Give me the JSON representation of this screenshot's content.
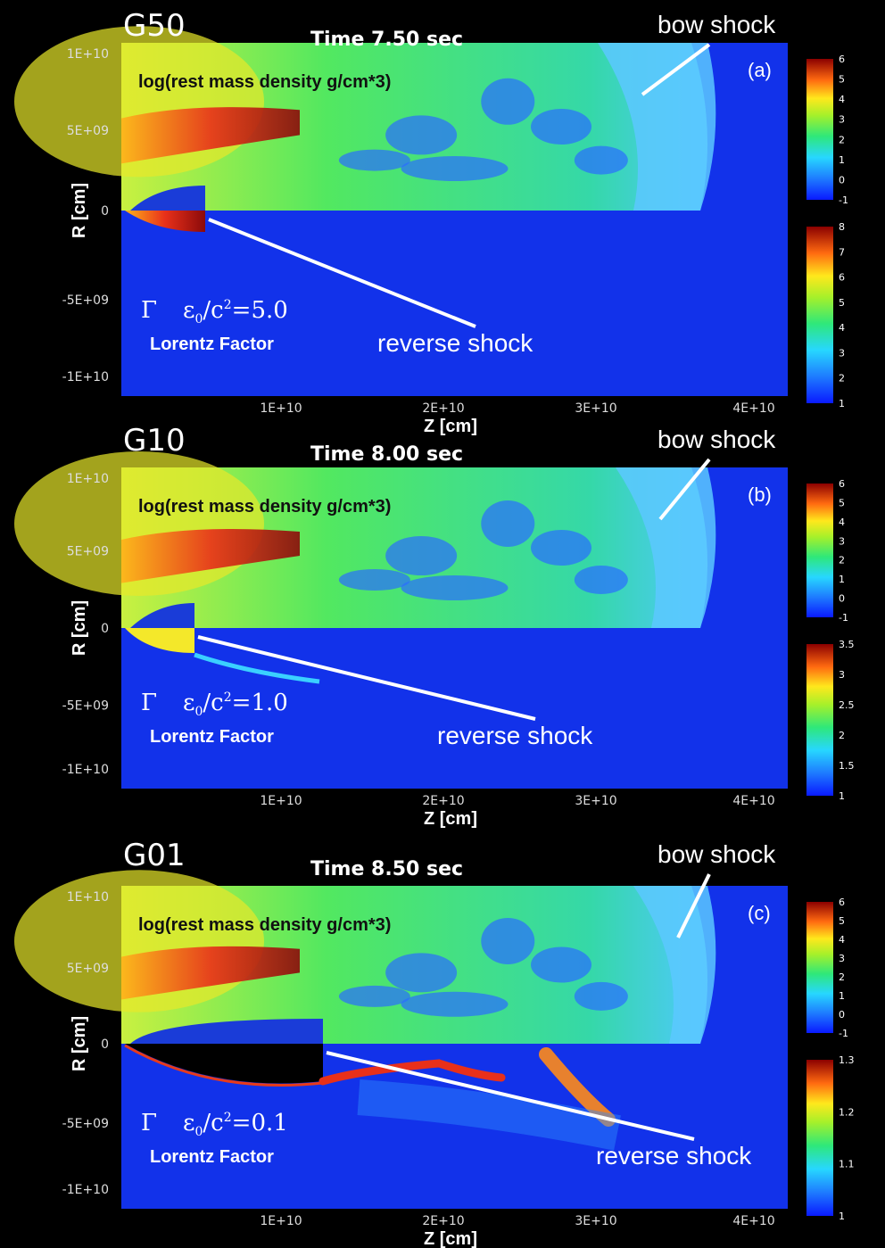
{
  "chart_data": [
    {
      "type": "heatmap",
      "model": "G50",
      "time": "Time  7.50 sec",
      "panel_label": "(a)",
      "upper_quantity": "log(rest mass density g/cm*3)",
      "lower_quantity": "Lorentz Factor",
      "energy_label_value": "=5.0",
      "annotations": [
        "bow shock",
        "reverse shock"
      ],
      "xlabel": "Z [cm]",
      "ylabel": "R [cm]",
      "x_ticks": [
        "1E+10",
        "2E+10",
        "3E+10",
        "4E+10"
      ],
      "y_ticks": [
        "1E+10",
        "5E+09",
        "0",
        "-5E+09",
        "-1E+10"
      ],
      "colorbar_top": [
        "6",
        "5",
        "4",
        "3",
        "2",
        "1",
        "0",
        "-1"
      ],
      "colorbar_bottom": [
        "8",
        "7",
        "6",
        "5",
        "4",
        "3",
        "2",
        "1"
      ],
      "density_range": [
        -1,
        6
      ],
      "lorentz_range": [
        1,
        8
      ]
    },
    {
      "type": "heatmap",
      "model": "G10",
      "time": "Time  8.00 sec",
      "panel_label": "(b)",
      "upper_quantity": "log(rest mass density g/cm*3)",
      "lower_quantity": "Lorentz Factor",
      "energy_label_value": "=1.0",
      "annotations": [
        "bow shock",
        "reverse shock"
      ],
      "xlabel": "Z [cm]",
      "ylabel": "R [cm]",
      "x_ticks": [
        "1E+10",
        "2E+10",
        "3E+10",
        "4E+10"
      ],
      "y_ticks": [
        "1E+10",
        "5E+09",
        "0",
        "-5E+09",
        "-1E+10"
      ],
      "colorbar_top": [
        "6",
        "5",
        "4",
        "3",
        "2",
        "1",
        "0",
        "-1"
      ],
      "colorbar_bottom": [
        "3.5",
        "3",
        "2.5",
        "2",
        "1.5",
        "1"
      ],
      "density_range": [
        -1,
        6
      ],
      "lorentz_range": [
        1,
        3.5
      ]
    },
    {
      "type": "heatmap",
      "model": "G01",
      "time": "Time  8.50 sec",
      "panel_label": "(c)",
      "upper_quantity": "log(rest mass density g/cm*3)",
      "lower_quantity": "Lorentz Factor",
      "energy_label_value": "=0.1",
      "annotations": [
        "bow shock",
        "reverse shock"
      ],
      "xlabel": "Z [cm]",
      "ylabel": "R [cm]",
      "x_ticks": [
        "1E+10",
        "2E+10",
        "3E+10",
        "4E+10"
      ],
      "y_ticks": [
        "1E+10",
        "5E+09",
        "0",
        "-5E+09",
        "-1E+10"
      ],
      "colorbar_top": [
        "6",
        "5",
        "4",
        "3",
        "2",
        "1",
        "0",
        "-1"
      ],
      "colorbar_bottom": [
        "1.3",
        "1.2",
        "1.1",
        "1"
      ],
      "density_range": [
        -1,
        6
      ],
      "lorentz_range": [
        1,
        1.3
      ]
    }
  ]
}
